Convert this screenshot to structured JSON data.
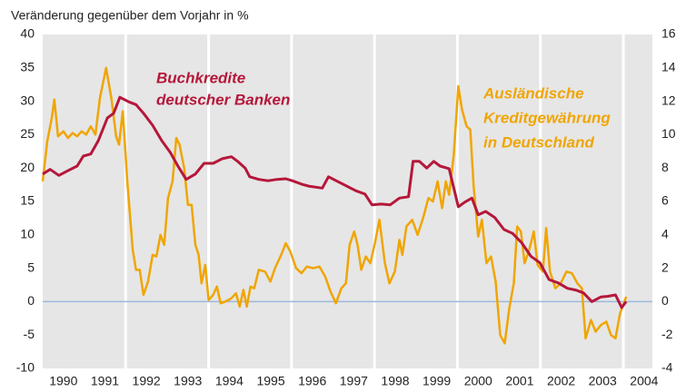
{
  "chart_data": {
    "type": "line",
    "y_axis_label": "Veränderung gegenüber dem Vorjahr in %",
    "annotations": [
      {
        "lines": [
          "Buchkredite",
          "deutscher Banken"
        ],
        "series": 0
      },
      {
        "lines": [
          "Ausländische",
          "Kreditgewährung",
          "in Deutschland"
        ],
        "series": 1
      }
    ],
    "xlim": [
      1990,
      2004.7
    ],
    "xticks": [
      1990,
      1991,
      1992,
      1993,
      1994,
      1995,
      1996,
      1997,
      1998,
      1999,
      2000,
      2001,
      2002,
      2003,
      2004
    ],
    "ylim": [
      -10,
      40
    ],
    "yticks": [
      40,
      35,
      30,
      25,
      20,
      15,
      10,
      5,
      0,
      -5,
      -10
    ],
    "y2lim": [
      -4,
      16
    ],
    "y2ticks": [
      16,
      14,
      12,
      10,
      8,
      6,
      4,
      2,
      0,
      -2,
      -4
    ],
    "background": "#e6e6e6",
    "series": [
      {
        "name": "Buchkredite deutscher Banken",
        "color": "#b5173a",
        "axis": "y",
        "x": [
          1990.0,
          1990.18,
          1990.39,
          1990.61,
          1990.83,
          1990.98,
          1991.16,
          1991.34,
          1991.56,
          1991.71,
          1991.86,
          1992.08,
          1992.25,
          1992.43,
          1992.65,
          1992.87,
          1993.08,
          1993.26,
          1993.46,
          1993.68,
          1993.89,
          1994.11,
          1994.33,
          1994.55,
          1994.7,
          1994.88,
          1994.99,
          1995.21,
          1995.43,
          1995.65,
          1995.86,
          1996.02,
          1996.24,
          1996.41,
          1996.74,
          1996.89,
          1997.11,
          1997.33,
          1997.55,
          1997.77,
          1997.94,
          1998.16,
          1998.38,
          1998.6,
          1998.82,
          1998.93,
          1999.08,
          1999.26,
          1999.43,
          1999.58,
          1999.8,
          2000.02,
          2000.18,
          2000.35,
          2000.5,
          2000.68,
          2000.9,
          2001.12,
          2001.33,
          2001.55,
          2001.77,
          2001.99,
          2002.21,
          2002.43,
          2002.65,
          2002.87,
          2003.04,
          2003.24,
          2003.46,
          2003.63,
          2003.81,
          2003.96,
          2004.07
        ],
        "values": [
          19.1,
          19.8,
          18.9,
          19.6,
          20.3,
          21.8,
          22.1,
          24.1,
          27.5,
          28.2,
          30.6,
          29.9,
          29.5,
          28.2,
          26.4,
          24.1,
          22.3,
          20.3,
          18.3,
          19.1,
          20.7,
          20.7,
          21.4,
          21.7,
          21.0,
          20.0,
          18.7,
          18.3,
          18.1,
          18.3,
          18.4,
          18.1,
          17.6,
          17.3,
          17.0,
          18.7,
          18.0,
          17.3,
          16.6,
          16.1,
          14.5,
          14.6,
          14.5,
          15.5,
          15.7,
          21.0,
          21.0,
          20.0,
          21.0,
          20.3,
          19.9,
          14.2,
          14.9,
          15.5,
          13.0,
          13.5,
          12.6,
          10.8,
          10.2,
          8.8,
          6.8,
          5.8,
          3.3,
          2.8,
          2.0,
          1.7,
          1.3,
          0.0,
          0.7,
          0.8,
          1.0,
          -0.9,
          0.0
        ]
      },
      {
        "name": "Ausländische Kreditgewährung in Deutschland",
        "color": "#f0a500",
        "axis": "y2",
        "x": [
          1990.0,
          1990.11,
          1990.22,
          1990.28,
          1990.37,
          1990.5,
          1990.61,
          1990.72,
          1990.83,
          1990.94,
          1991.05,
          1991.16,
          1991.27,
          1991.38,
          1991.53,
          1991.66,
          1991.77,
          1991.84,
          1991.93,
          1992.04,
          1992.17,
          1992.25,
          1992.34,
          1992.43,
          1992.54,
          1992.65,
          1992.74,
          1992.84,
          1992.93,
          1993.02,
          1993.13,
          1993.22,
          1993.3,
          1993.41,
          1993.5,
          1993.59,
          1993.68,
          1993.76,
          1993.83,
          1993.92,
          1994.0,
          1994.11,
          1994.2,
          1994.29,
          1994.4,
          1994.55,
          1994.66,
          1994.75,
          1994.84,
          1994.92,
          1995.01,
          1995.1,
          1995.21,
          1995.36,
          1995.49,
          1995.6,
          1995.75,
          1995.86,
          1995.97,
          1996.11,
          1996.24,
          1996.37,
          1996.52,
          1996.67,
          1996.81,
          1996.94,
          1997.07,
          1997.2,
          1997.31,
          1997.4,
          1997.51,
          1997.59,
          1997.68,
          1997.79,
          1997.9,
          1998.01,
          1998.12,
          1998.25,
          1998.36,
          1998.49,
          1998.6,
          1998.67,
          1998.77,
          1998.91,
          1999.04,
          1999.17,
          1999.3,
          1999.41,
          1999.52,
          1999.63,
          1999.72,
          1999.8,
          1999.91,
          2000.02,
          2000.11,
          2000.22,
          2000.31,
          2000.39,
          2000.5,
          2000.59,
          2000.7,
          2000.81,
          2000.92,
          2001.03,
          2001.14,
          2001.25,
          2001.36,
          2001.44,
          2001.53,
          2001.62,
          2001.73,
          2001.84,
          2001.93,
          2002.06,
          2002.14,
          2002.23,
          2002.36,
          2002.49,
          2002.63,
          2002.76,
          2002.89,
          2003.0,
          2003.09,
          2003.22,
          2003.33,
          2003.46,
          2003.59,
          2003.7,
          2003.81,
          2003.92,
          2004.07
        ],
        "values": [
          7.2,
          9.6,
          11.0,
          12.1,
          9.9,
          10.2,
          9.8,
          10.1,
          9.9,
          10.2,
          10.0,
          10.5,
          10.0,
          12.2,
          14.0,
          12.1,
          9.9,
          9.4,
          11.4,
          7.2,
          3.1,
          1.9,
          1.9,
          0.4,
          1.2,
          2.8,
          2.7,
          4.0,
          3.4,
          6.2,
          7.2,
          9.8,
          9.4,
          8.0,
          5.8,
          5.8,
          3.4,
          2.8,
          1.1,
          2.2,
          0.1,
          0.4,
          0.9,
          -0.1,
          0.0,
          0.2,
          0.5,
          -0.3,
          0.7,
          -0.3,
          0.9,
          0.8,
          1.9,
          1.8,
          1.2,
          2.0,
          2.8,
          3.5,
          3.0,
          2.0,
          1.7,
          2.1,
          2.0,
          2.1,
          1.5,
          0.6,
          -0.1,
          0.8,
          1.1,
          3.4,
          4.2,
          3.4,
          1.9,
          2.7,
          2.3,
          3.5,
          4.9,
          2.3,
          1.1,
          1.8,
          3.7,
          2.8,
          4.5,
          4.9,
          4.0,
          5.0,
          6.2,
          6.0,
          7.2,
          5.6,
          7.2,
          6.4,
          8.8,
          12.9,
          11.5,
          10.5,
          10.3,
          6.9,
          3.9,
          4.9,
          2.3,
          2.7,
          1.2,
          -2.0,
          -2.5,
          -0.4,
          1.1,
          4.5,
          4.2,
          2.3,
          3.1,
          4.2,
          2.2,
          1.8,
          4.4,
          1.8,
          0.8,
          1.1,
          1.8,
          1.7,
          1.1,
          0.8,
          -2.2,
          -1.1,
          -1.8,
          -1.4,
          -1.2,
          -2.0,
          -2.2,
          -0.7,
          0.3
        ]
      }
    ]
  }
}
